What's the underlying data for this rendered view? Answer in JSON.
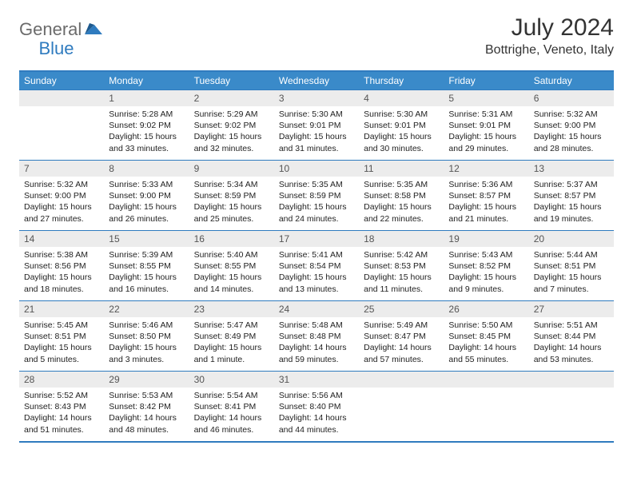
{
  "logo": {
    "text1": "General",
    "text2": "Blue"
  },
  "title": "July 2024",
  "location": "Bottrighe, Veneto, Italy",
  "colors": {
    "header_bg": "#3a8ac9",
    "header_text": "#ffffff",
    "border": "#2f7bbf",
    "daynum_bg": "#ececec",
    "daynum_text": "#555555",
    "body_text": "#222222",
    "logo_gray": "#6b6b6b",
    "logo_blue": "#2f7bbf"
  },
  "dayNames": [
    "Sunday",
    "Monday",
    "Tuesday",
    "Wednesday",
    "Thursday",
    "Friday",
    "Saturday"
  ],
  "weeks": [
    [
      null,
      {
        "n": "1",
        "sr": "Sunrise: 5:28 AM",
        "ss": "Sunset: 9:02 PM",
        "dl": "Daylight: 15 hours and 33 minutes."
      },
      {
        "n": "2",
        "sr": "Sunrise: 5:29 AM",
        "ss": "Sunset: 9:02 PM",
        "dl": "Daylight: 15 hours and 32 minutes."
      },
      {
        "n": "3",
        "sr": "Sunrise: 5:30 AM",
        "ss": "Sunset: 9:01 PM",
        "dl": "Daylight: 15 hours and 31 minutes."
      },
      {
        "n": "4",
        "sr": "Sunrise: 5:30 AM",
        "ss": "Sunset: 9:01 PM",
        "dl": "Daylight: 15 hours and 30 minutes."
      },
      {
        "n": "5",
        "sr": "Sunrise: 5:31 AM",
        "ss": "Sunset: 9:01 PM",
        "dl": "Daylight: 15 hours and 29 minutes."
      },
      {
        "n": "6",
        "sr": "Sunrise: 5:32 AM",
        "ss": "Sunset: 9:00 PM",
        "dl": "Daylight: 15 hours and 28 minutes."
      }
    ],
    [
      {
        "n": "7",
        "sr": "Sunrise: 5:32 AM",
        "ss": "Sunset: 9:00 PM",
        "dl": "Daylight: 15 hours and 27 minutes."
      },
      {
        "n": "8",
        "sr": "Sunrise: 5:33 AM",
        "ss": "Sunset: 9:00 PM",
        "dl": "Daylight: 15 hours and 26 minutes."
      },
      {
        "n": "9",
        "sr": "Sunrise: 5:34 AM",
        "ss": "Sunset: 8:59 PM",
        "dl": "Daylight: 15 hours and 25 minutes."
      },
      {
        "n": "10",
        "sr": "Sunrise: 5:35 AM",
        "ss": "Sunset: 8:59 PM",
        "dl": "Daylight: 15 hours and 24 minutes."
      },
      {
        "n": "11",
        "sr": "Sunrise: 5:35 AM",
        "ss": "Sunset: 8:58 PM",
        "dl": "Daylight: 15 hours and 22 minutes."
      },
      {
        "n": "12",
        "sr": "Sunrise: 5:36 AM",
        "ss": "Sunset: 8:57 PM",
        "dl": "Daylight: 15 hours and 21 minutes."
      },
      {
        "n": "13",
        "sr": "Sunrise: 5:37 AM",
        "ss": "Sunset: 8:57 PM",
        "dl": "Daylight: 15 hours and 19 minutes."
      }
    ],
    [
      {
        "n": "14",
        "sr": "Sunrise: 5:38 AM",
        "ss": "Sunset: 8:56 PM",
        "dl": "Daylight: 15 hours and 18 minutes."
      },
      {
        "n": "15",
        "sr": "Sunrise: 5:39 AM",
        "ss": "Sunset: 8:55 PM",
        "dl": "Daylight: 15 hours and 16 minutes."
      },
      {
        "n": "16",
        "sr": "Sunrise: 5:40 AM",
        "ss": "Sunset: 8:55 PM",
        "dl": "Daylight: 15 hours and 14 minutes."
      },
      {
        "n": "17",
        "sr": "Sunrise: 5:41 AM",
        "ss": "Sunset: 8:54 PM",
        "dl": "Daylight: 15 hours and 13 minutes."
      },
      {
        "n": "18",
        "sr": "Sunrise: 5:42 AM",
        "ss": "Sunset: 8:53 PM",
        "dl": "Daylight: 15 hours and 11 minutes."
      },
      {
        "n": "19",
        "sr": "Sunrise: 5:43 AM",
        "ss": "Sunset: 8:52 PM",
        "dl": "Daylight: 15 hours and 9 minutes."
      },
      {
        "n": "20",
        "sr": "Sunrise: 5:44 AM",
        "ss": "Sunset: 8:51 PM",
        "dl": "Daylight: 15 hours and 7 minutes."
      }
    ],
    [
      {
        "n": "21",
        "sr": "Sunrise: 5:45 AM",
        "ss": "Sunset: 8:51 PM",
        "dl": "Daylight: 15 hours and 5 minutes."
      },
      {
        "n": "22",
        "sr": "Sunrise: 5:46 AM",
        "ss": "Sunset: 8:50 PM",
        "dl": "Daylight: 15 hours and 3 minutes."
      },
      {
        "n": "23",
        "sr": "Sunrise: 5:47 AM",
        "ss": "Sunset: 8:49 PM",
        "dl": "Daylight: 15 hours and 1 minute."
      },
      {
        "n": "24",
        "sr": "Sunrise: 5:48 AM",
        "ss": "Sunset: 8:48 PM",
        "dl": "Daylight: 14 hours and 59 minutes."
      },
      {
        "n": "25",
        "sr": "Sunrise: 5:49 AM",
        "ss": "Sunset: 8:47 PM",
        "dl": "Daylight: 14 hours and 57 minutes."
      },
      {
        "n": "26",
        "sr": "Sunrise: 5:50 AM",
        "ss": "Sunset: 8:45 PM",
        "dl": "Daylight: 14 hours and 55 minutes."
      },
      {
        "n": "27",
        "sr": "Sunrise: 5:51 AM",
        "ss": "Sunset: 8:44 PM",
        "dl": "Daylight: 14 hours and 53 minutes."
      }
    ],
    [
      {
        "n": "28",
        "sr": "Sunrise: 5:52 AM",
        "ss": "Sunset: 8:43 PM",
        "dl": "Daylight: 14 hours and 51 minutes."
      },
      {
        "n": "29",
        "sr": "Sunrise: 5:53 AM",
        "ss": "Sunset: 8:42 PM",
        "dl": "Daylight: 14 hours and 48 minutes."
      },
      {
        "n": "30",
        "sr": "Sunrise: 5:54 AM",
        "ss": "Sunset: 8:41 PM",
        "dl": "Daylight: 14 hours and 46 minutes."
      },
      {
        "n": "31",
        "sr": "Sunrise: 5:56 AM",
        "ss": "Sunset: 8:40 PM",
        "dl": "Daylight: 14 hours and 44 minutes."
      },
      null,
      null,
      null
    ]
  ]
}
